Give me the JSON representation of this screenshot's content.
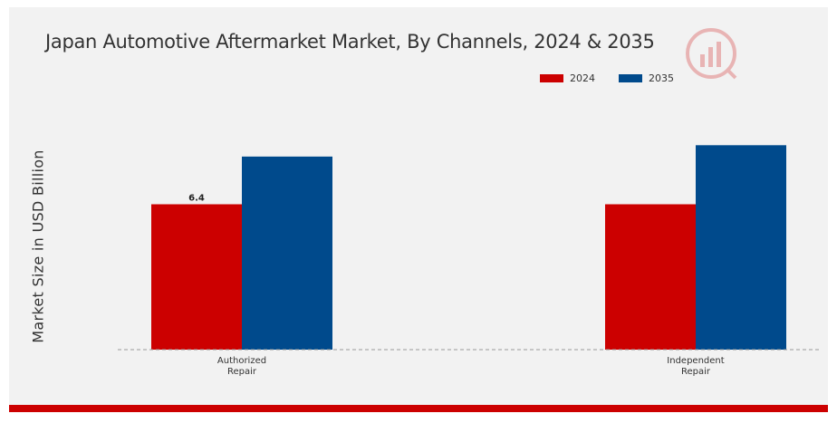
{
  "chart_data": {
    "type": "bar",
    "title": "Japan Automotive Aftermarket Market, By Channels, 2024 & 2035",
    "ylabel": "Market Size in USD Billion",
    "xlabel": "",
    "categories": [
      [
        "Authorized",
        "Repair"
      ],
      [
        "Independent",
        "Repair"
      ]
    ],
    "series": [
      {
        "name": "2024",
        "color": "#cc0000",
        "values": [
          6.4,
          6.4
        ]
      },
      {
        "name": "2035",
        "color": "#004a8c",
        "values": [
          8.5,
          9.0
        ]
      }
    ],
    "data_labels": [
      [
        "6.4",
        null
      ],
      [
        null,
        null
      ]
    ],
    "ylim": [
      0,
      13
    ],
    "grid": false,
    "legend_position": "top-right",
    "baseline_style": "dashed"
  },
  "colors": {
    "background": "#f2f2f2",
    "bottom_band": "#cc0000",
    "text": "#333333"
  },
  "watermark_icon": "chart-logo-icon"
}
